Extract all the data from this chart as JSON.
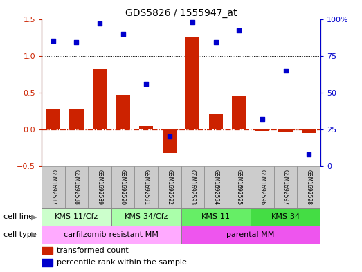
{
  "title": "GDS5826 / 1555947_at",
  "samples": [
    "GSM1692587",
    "GSM1692588",
    "GSM1692589",
    "GSM1692590",
    "GSM1692591",
    "GSM1692592",
    "GSM1692593",
    "GSM1692594",
    "GSM1692595",
    "GSM1692596",
    "GSM1692597",
    "GSM1692598"
  ],
  "transformed_count": [
    0.27,
    0.28,
    0.82,
    0.47,
    0.04,
    -0.32,
    1.25,
    0.21,
    0.46,
    -0.02,
    -0.03,
    -0.05
  ],
  "percentile_rank": [
    85,
    84,
    97,
    90,
    56,
    20,
    98,
    84,
    92,
    32,
    65,
    8
  ],
  "bar_color": "#cc2200",
  "dot_color": "#0000cc",
  "hline_color": "#cc2200",
  "grid_color": "black",
  "left_ylim": [
    -0.5,
    1.5
  ],
  "right_ylim": [
    0,
    100
  ],
  "left_yticks": [
    -0.5,
    0.0,
    0.5,
    1.0,
    1.5
  ],
  "right_yticks": [
    0,
    25,
    50,
    75,
    100
  ],
  "dotted_lines": [
    0.5,
    1.0
  ],
  "cell_line_groups": [
    {
      "label": "KMS-11/Cfz",
      "start": 0,
      "end": 3,
      "color": "#ccffcc"
    },
    {
      "label": "KMS-34/Cfz",
      "start": 3,
      "end": 6,
      "color": "#aaffaa"
    },
    {
      "label": "KMS-11",
      "start": 6,
      "end": 9,
      "color": "#66ee66"
    },
    {
      "label": "KMS-34",
      "start": 9,
      "end": 12,
      "color": "#44dd44"
    }
  ],
  "cell_type_groups": [
    {
      "label": "carfilzomib-resistant MM",
      "start": 0,
      "end": 6,
      "color": "#ffaaff"
    },
    {
      "label": "parental MM",
      "start": 6,
      "end": 12,
      "color": "#ee55ee"
    }
  ],
  "sample_box_color": "#cccccc",
  "legend_bar_label": "transformed count",
  "legend_dot_label": "percentile rank within the sample",
  "background_color": "#ffffff",
  "title_fontsize": 10,
  "axis_fontsize": 8,
  "sample_fontsize": 5.5,
  "annotation_fontsize": 8,
  "legend_fontsize": 8
}
